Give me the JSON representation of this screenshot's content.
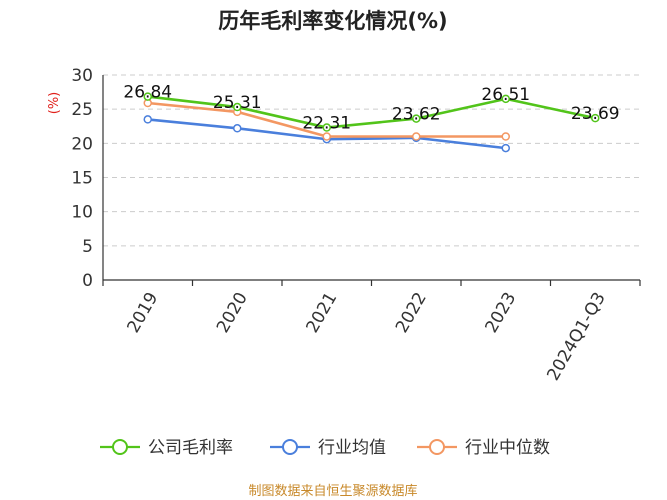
{
  "chart_data": {
    "type": "line",
    "title": "历年毛利率变化情况(%)",
    "ylabel": "(%)",
    "ylim": [
      0,
      30
    ],
    "yticks": [
      0,
      5,
      10,
      15,
      20,
      25,
      30
    ],
    "categories": [
      "2019",
      "2020",
      "2021",
      "2022",
      "2023",
      "2024Q1-Q3"
    ],
    "series": [
      {
        "name": "公司毛利率",
        "color": "#52c41a",
        "values": [
          26.84,
          25.31,
          22.31,
          23.62,
          26.51,
          23.69
        ],
        "labels": [
          "26.84",
          "25.31",
          "22.31",
          "23.62",
          "26.51",
          "23.69"
        ]
      },
      {
        "name": "行业均值",
        "color": "#4a7fdc",
        "values": [
          23.5,
          22.2,
          20.6,
          20.8,
          19.3,
          null
        ]
      },
      {
        "name": "行业中位数",
        "color": "#f39762",
        "values": [
          25.9,
          24.6,
          21.0,
          21.0,
          21.0,
          null
        ]
      }
    ],
    "grid": true,
    "legend": "bottom"
  },
  "source": "制图数据来自恒生聚源数据库"
}
